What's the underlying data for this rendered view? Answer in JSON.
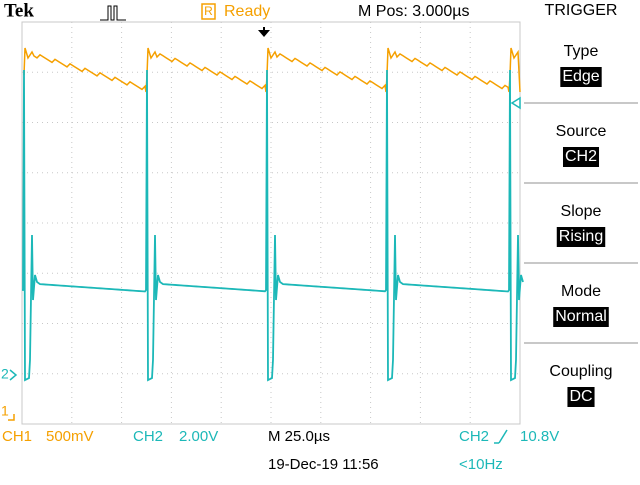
{
  "header": {
    "brand": "Tek",
    "status_icon": "R",
    "status": "Ready",
    "position": "M Pos: 3.000µs"
  },
  "menu": {
    "title": "TRIGGER",
    "items": [
      {
        "label": "Type",
        "value": "Edge"
      },
      {
        "label": "Source",
        "value": "CH2"
      },
      {
        "label": "Slope",
        "value": "Rising"
      },
      {
        "label": "Mode",
        "value": "Normal"
      },
      {
        "label": "Coupling",
        "value": "DC"
      }
    ]
  },
  "markers": {
    "ch1": "1",
    "ch2": "2"
  },
  "footer": {
    "ch1_name": "CH1",
    "ch1_scale": "500mV",
    "ch2_name": "CH2",
    "ch2_scale": "2.00V",
    "timebase": "M 25.0µs",
    "trigger_source": "CH2",
    "trigger_level": "10.8V",
    "date": "19-Dec-19 11:56",
    "frequency": "<10Hz"
  }
}
